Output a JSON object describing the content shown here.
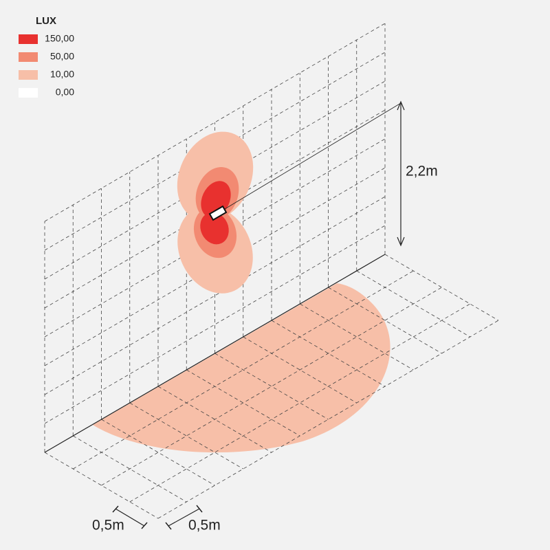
{
  "legend": {
    "title": "LUX",
    "items": [
      {
        "label": "150,00",
        "color": "#e8312f"
      },
      {
        "label": "50,00",
        "color": "#f28a72"
      },
      {
        "label": "10,00",
        "color": "#f7bfa8"
      },
      {
        "label": "0,00",
        "color": "#ffffff"
      }
    ]
  },
  "dimensions": {
    "height": "2,2m",
    "grid_width": "0,5m",
    "grid_depth": "0,5m"
  }
}
